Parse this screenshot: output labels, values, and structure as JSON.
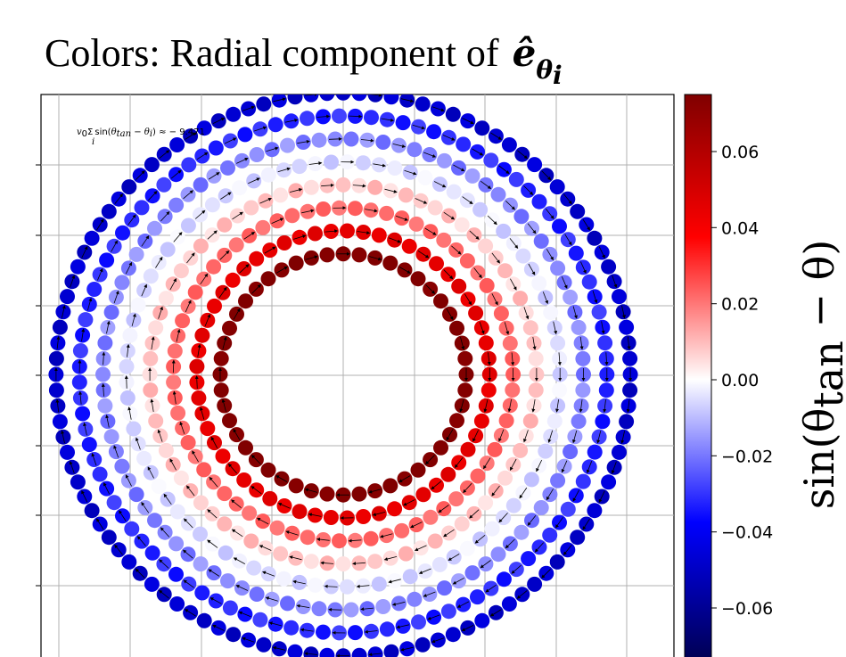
{
  "chart_data": {
    "type": "scatter",
    "title": {
      "prefix": "Colors:  Radial component of ",
      "symbol": "ê",
      "subscript": "θ",
      "subsubscript": "i"
    },
    "annotation": {
      "v0": "v",
      "v0_sub": "0",
      "sum": "Σ",
      "sum_sub": "i",
      "expr": "sin(",
      "theta_tan": "θ",
      "tan_sub": "tan",
      "minus": " − ",
      "theta_i": "θ",
      "i_sub": "i",
      "close": ") ≈ − 9.471"
    },
    "grid": true,
    "colormap": "seismic",
    "points_description_rings": [
      {
        "radius": 1.0,
        "value": 0.075
      },
      {
        "radius": 1.12,
        "value": 0.045
      },
      {
        "radius": 1.24,
        "value": 0.022
      },
      {
        "radius": 1.36,
        "value": 0.008
      },
      {
        "radius": 1.48,
        "value": -0.005
      },
      {
        "radius": 1.6,
        "value": -0.018
      },
      {
        "radius": 1.72,
        "value": -0.032
      },
      {
        "radius": 1.84,
        "value": -0.048
      }
    ],
    "colorbar": {
      "label": "sin(θ",
      "label_sub": "tan",
      "label_tail": " − θ)",
      "range": [
        -0.075,
        0.075
      ],
      "ticks": [
        0.06,
        0.04,
        0.02,
        0.0,
        -0.02,
        -0.04,
        -0.06
      ],
      "tick_labels": [
        "0.06",
        "0.04",
        "0.02",
        "0.00",
        "−0.02",
        "−0.04",
        "−0.06"
      ]
    }
  }
}
